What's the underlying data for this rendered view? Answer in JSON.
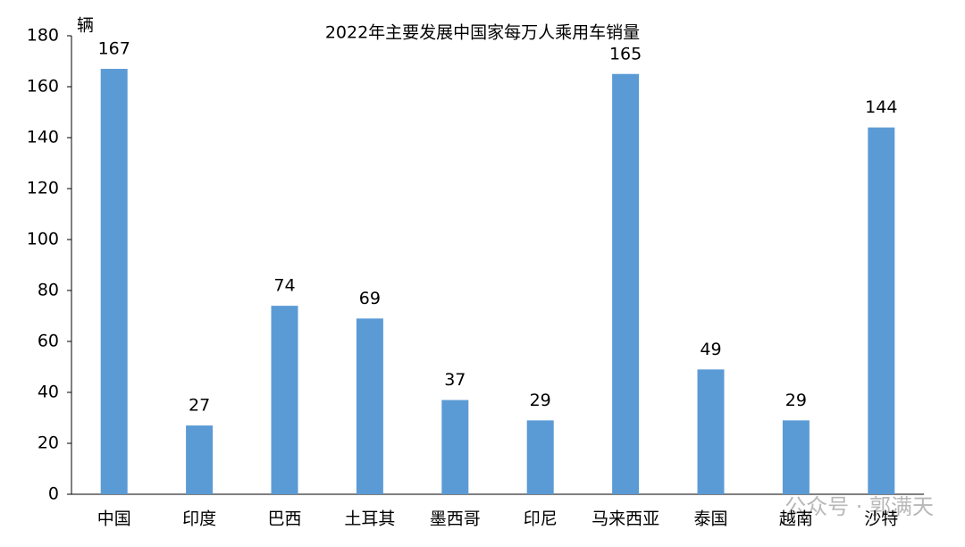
{
  "chart_data": {
    "type": "bar",
    "title": "2022年主要发展中国家每万人乘用车销量",
    "y_label": "辆",
    "categories": [
      "中国",
      "印度",
      "巴西",
      "土耳其",
      "墨西哥",
      "印尼",
      "马来西亚",
      "泰国",
      "越南",
      "沙特"
    ],
    "values": [
      167,
      27,
      74,
      69,
      37,
      29,
      165,
      49,
      29,
      144
    ],
    "color": "#5b9bd5",
    "ylim": [
      0,
      180
    ],
    "yticks": [
      0,
      20,
      40,
      60,
      80,
      100,
      120,
      140,
      160,
      180
    ],
    "grid": false,
    "watermark": "公众号 · 郭满天"
  }
}
